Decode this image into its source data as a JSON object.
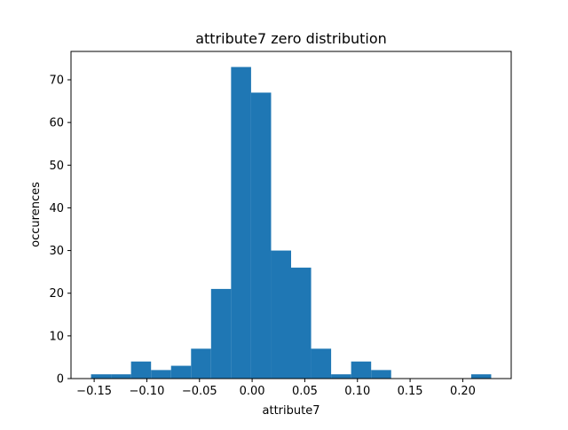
{
  "chart_data": {
    "type": "bar",
    "title": "attribute7 zero distribution",
    "xlabel": "attribute7",
    "ylabel": "occurences",
    "xlim": [
      -0.172,
      0.246
    ],
    "ylim": [
      0,
      76.65
    ],
    "x_ticks": [
      -0.15,
      -0.1,
      -0.05,
      0.0,
      0.05,
      0.1,
      0.15,
      0.2
    ],
    "x_tick_labels": [
      "−0.15",
      "−0.10",
      "−0.05",
      "0.00",
      "0.05",
      "0.10",
      "0.15",
      "0.20"
    ],
    "y_ticks": [
      0,
      10,
      20,
      30,
      40,
      50,
      60,
      70
    ],
    "y_tick_labels": [
      "0",
      "10",
      "20",
      "30",
      "40",
      "50",
      "60",
      "70"
    ],
    "bin_edges": [
      -0.153,
      -0.134,
      -0.115,
      -0.096,
      -0.077,
      -0.058,
      -0.039,
      -0.02,
      -0.001,
      0.018,
      0.037,
      0.056,
      0.075,
      0.094,
      0.113,
      0.132,
      0.151,
      0.17,
      0.189,
      0.208,
      0.227
    ],
    "values": [
      1,
      1,
      4,
      2,
      3,
      7,
      21,
      73,
      67,
      30,
      26,
      7,
      1,
      4,
      2,
      0,
      0,
      0,
      0,
      1
    ],
    "grid": false,
    "colors": {
      "bar": "#1f77b4",
      "axis": "#000000",
      "background": "#ffffff"
    }
  }
}
